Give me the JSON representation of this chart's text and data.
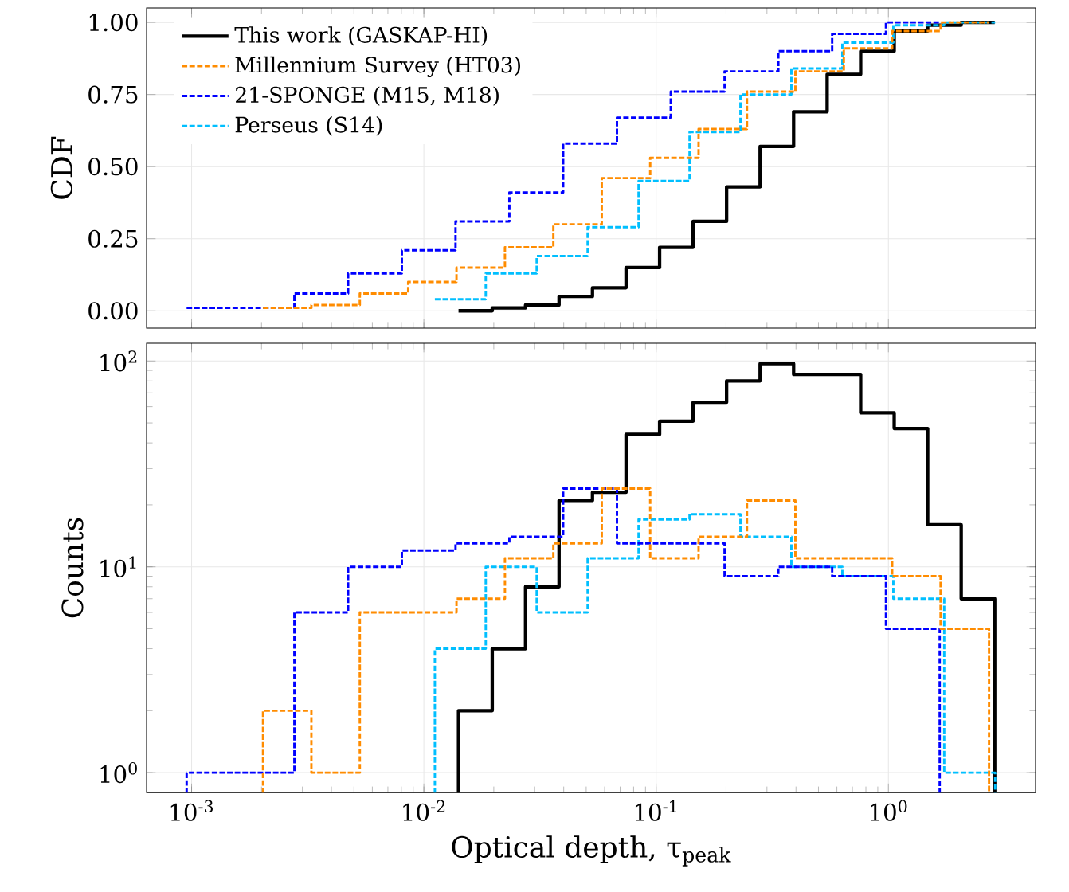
{
  "chart_data": [
    {
      "type": "step",
      "ylabel": "CDF",
      "log": "x",
      "grid": true,
      "legend": "top left",
      "tick_labels": "y",
      "xlim": [
        0.00064,
        4.3
      ],
      "ylim": [
        -0.06,
        1.05
      ],
      "xticks": [
        {
          "value": 0.001,
          "label": null
        },
        {
          "value": 0.01,
          "label": null
        },
        {
          "value": 0.1,
          "label": null
        },
        {
          "value": 1,
          "label": null
        }
      ],
      "yticks": [
        {
          "value": 0,
          "label": "0.00"
        },
        {
          "value": 0.25,
          "label": "0.25"
        },
        {
          "value": 0.5,
          "label": "0.50"
        },
        {
          "value": 0.75,
          "label": "0.75"
        },
        {
          "value": 1,
          "label": "1.00"
        }
      ],
      "series": [
        {
          "name": "This work (GASKAP-HI)",
          "color": "#000000",
          "line_style": "solid",
          "x": [
            0.0141,
            0.0197,
            0.0274,
            0.0382,
            0.0532,
            0.0742,
            0.1035,
            0.1443,
            0.2011,
            0.2804,
            0.3908,
            0.5449,
            0.7597,
            1.059,
            1.476,
            2.058,
            2.869
          ],
          "values": [
            0.0,
            0.01,
            0.02,
            0.05,
            0.08,
            0.15,
            0.22,
            0.31,
            0.43,
            0.57,
            0.69,
            0.82,
            0.9,
            0.97,
            0.99,
            1.0,
            1.0
          ]
        },
        {
          "name": "Millennium Survey (HT03)",
          "color": "#ff8c00",
          "line_style": "dashed",
          "x": [
            0.00203,
            0.00328,
            0.0053,
            0.00856,
            0.01382,
            0.02234,
            0.0361,
            0.05834,
            0.09428,
            0.1523,
            0.2461,
            0.3977,
            0.6427,
            1.038,
            1.678,
            2.712
          ],
          "values": [
            0.01,
            0.02,
            0.06,
            0.1,
            0.15,
            0.22,
            0.3,
            0.46,
            0.53,
            0.63,
            0.76,
            0.83,
            0.91,
            0.97,
            1.0,
            1.0
          ]
        },
        {
          "name": "21-SPONGE (M15, M18)",
          "color": "#0000ff",
          "line_style": "dashed",
          "x": [
            0.000952,
            0.00162,
            0.00277,
            0.00472,
            0.00804,
            0.01369,
            0.02334,
            0.03979,
            0.06782,
            0.1156,
            0.1971,
            0.3359,
            0.5727,
            0.9759,
            1.663
          ],
          "values": [
            0.01,
            0.01,
            0.06,
            0.13,
            0.21,
            0.31,
            0.41,
            0.58,
            0.67,
            0.76,
            0.83,
            0.9,
            0.96,
            1.0,
            1.0
          ]
        },
        {
          "name": "Perseus (S14)",
          "color": "#00bfff",
          "line_style": "dashed",
          "x": [
            0.01115,
            0.01847,
            0.03061,
            0.05072,
            0.08405,
            0.1393,
            0.2307,
            0.3823,
            0.6334,
            1.05,
            1.739,
            2.881
          ],
          "values": [
            0.04,
            0.13,
            0.19,
            0.29,
            0.45,
            0.62,
            0.75,
            0.84,
            0.93,
            0.99,
            1.0,
            1.0
          ]
        }
      ]
    },
    {
      "type": "step",
      "xlabel": "Optical depth, τ$_{peak}$",
      "ylabel": "Counts",
      "log": "xy",
      "grid": true,
      "xlim": [
        0.00064,
        4.3
      ],
      "ylim": [
        0.8,
        122
      ],
      "xticks": [
        {
          "value": 0.001,
          "label": "10$^{-3}$"
        },
        {
          "value": 0.01,
          "label": "10$^{-2}$"
        },
        {
          "value": 0.1,
          "label": "10$^{-1}$"
        },
        {
          "value": 1,
          "label": "10$^{0}$"
        }
      ],
      "yticks": [
        {
          "value": 1,
          "label": "10$^{0}$"
        },
        {
          "value": 10,
          "label": "10$^{1}$"
        },
        {
          "value": 100,
          "label": "10$^{2}$"
        }
      ],
      "series": [
        {
          "color": "#000000",
          "line_style": "solid",
          "x": [
            0.0141,
            0.0197,
            0.0274,
            0.0382,
            0.0532,
            0.0742,
            0.1035,
            0.1443,
            0.2011,
            0.2804,
            0.3908,
            0.5449,
            0.7597,
            1.059,
            1.476,
            2.058,
            2.869
          ],
          "values": [
            2,
            4,
            8,
            21,
            23,
            44,
            51,
            63,
            80,
            97,
            86,
            86,
            56,
            47,
            16,
            7,
            7
          ]
        },
        {
          "color": "#ff8c00",
          "line_style": "dashed",
          "x": [
            0.00203,
            0.00328,
            0.0053,
            0.00856,
            0.01382,
            0.02234,
            0.0361,
            0.05834,
            0.09428,
            0.1523,
            0.2461,
            0.3977,
            0.6427,
            1.038,
            1.678,
            2.712
          ],
          "values": [
            2,
            1,
            6,
            6,
            7,
            11,
            13,
            24,
            11,
            14,
            21,
            11,
            11,
            9,
            5,
            5
          ]
        },
        {
          "color": "#0000ff",
          "line_style": "dashed",
          "x": [
            0.000952,
            0.00162,
            0.00277,
            0.00472,
            0.00804,
            0.01369,
            0.02334,
            0.03979,
            0.06782,
            0.1156,
            0.1971,
            0.3359,
            0.5727,
            0.9759,
            1.663
          ],
          "values": [
            1,
            1,
            6,
            10,
            12,
            13,
            14,
            24,
            13,
            13,
            9,
            10,
            9,
            5,
            5
          ]
        },
        {
          "color": "#00bfff",
          "line_style": "dashed",
          "x": [
            0.01115,
            0.01847,
            0.03061,
            0.05072,
            0.08405,
            0.1393,
            0.2307,
            0.3823,
            0.6334,
            1.05,
            1.739,
            2.881
          ],
          "values": [
            4,
            10,
            6,
            11,
            17,
            18,
            14,
            10,
            9,
            7,
            1,
            1
          ]
        }
      ]
    }
  ]
}
